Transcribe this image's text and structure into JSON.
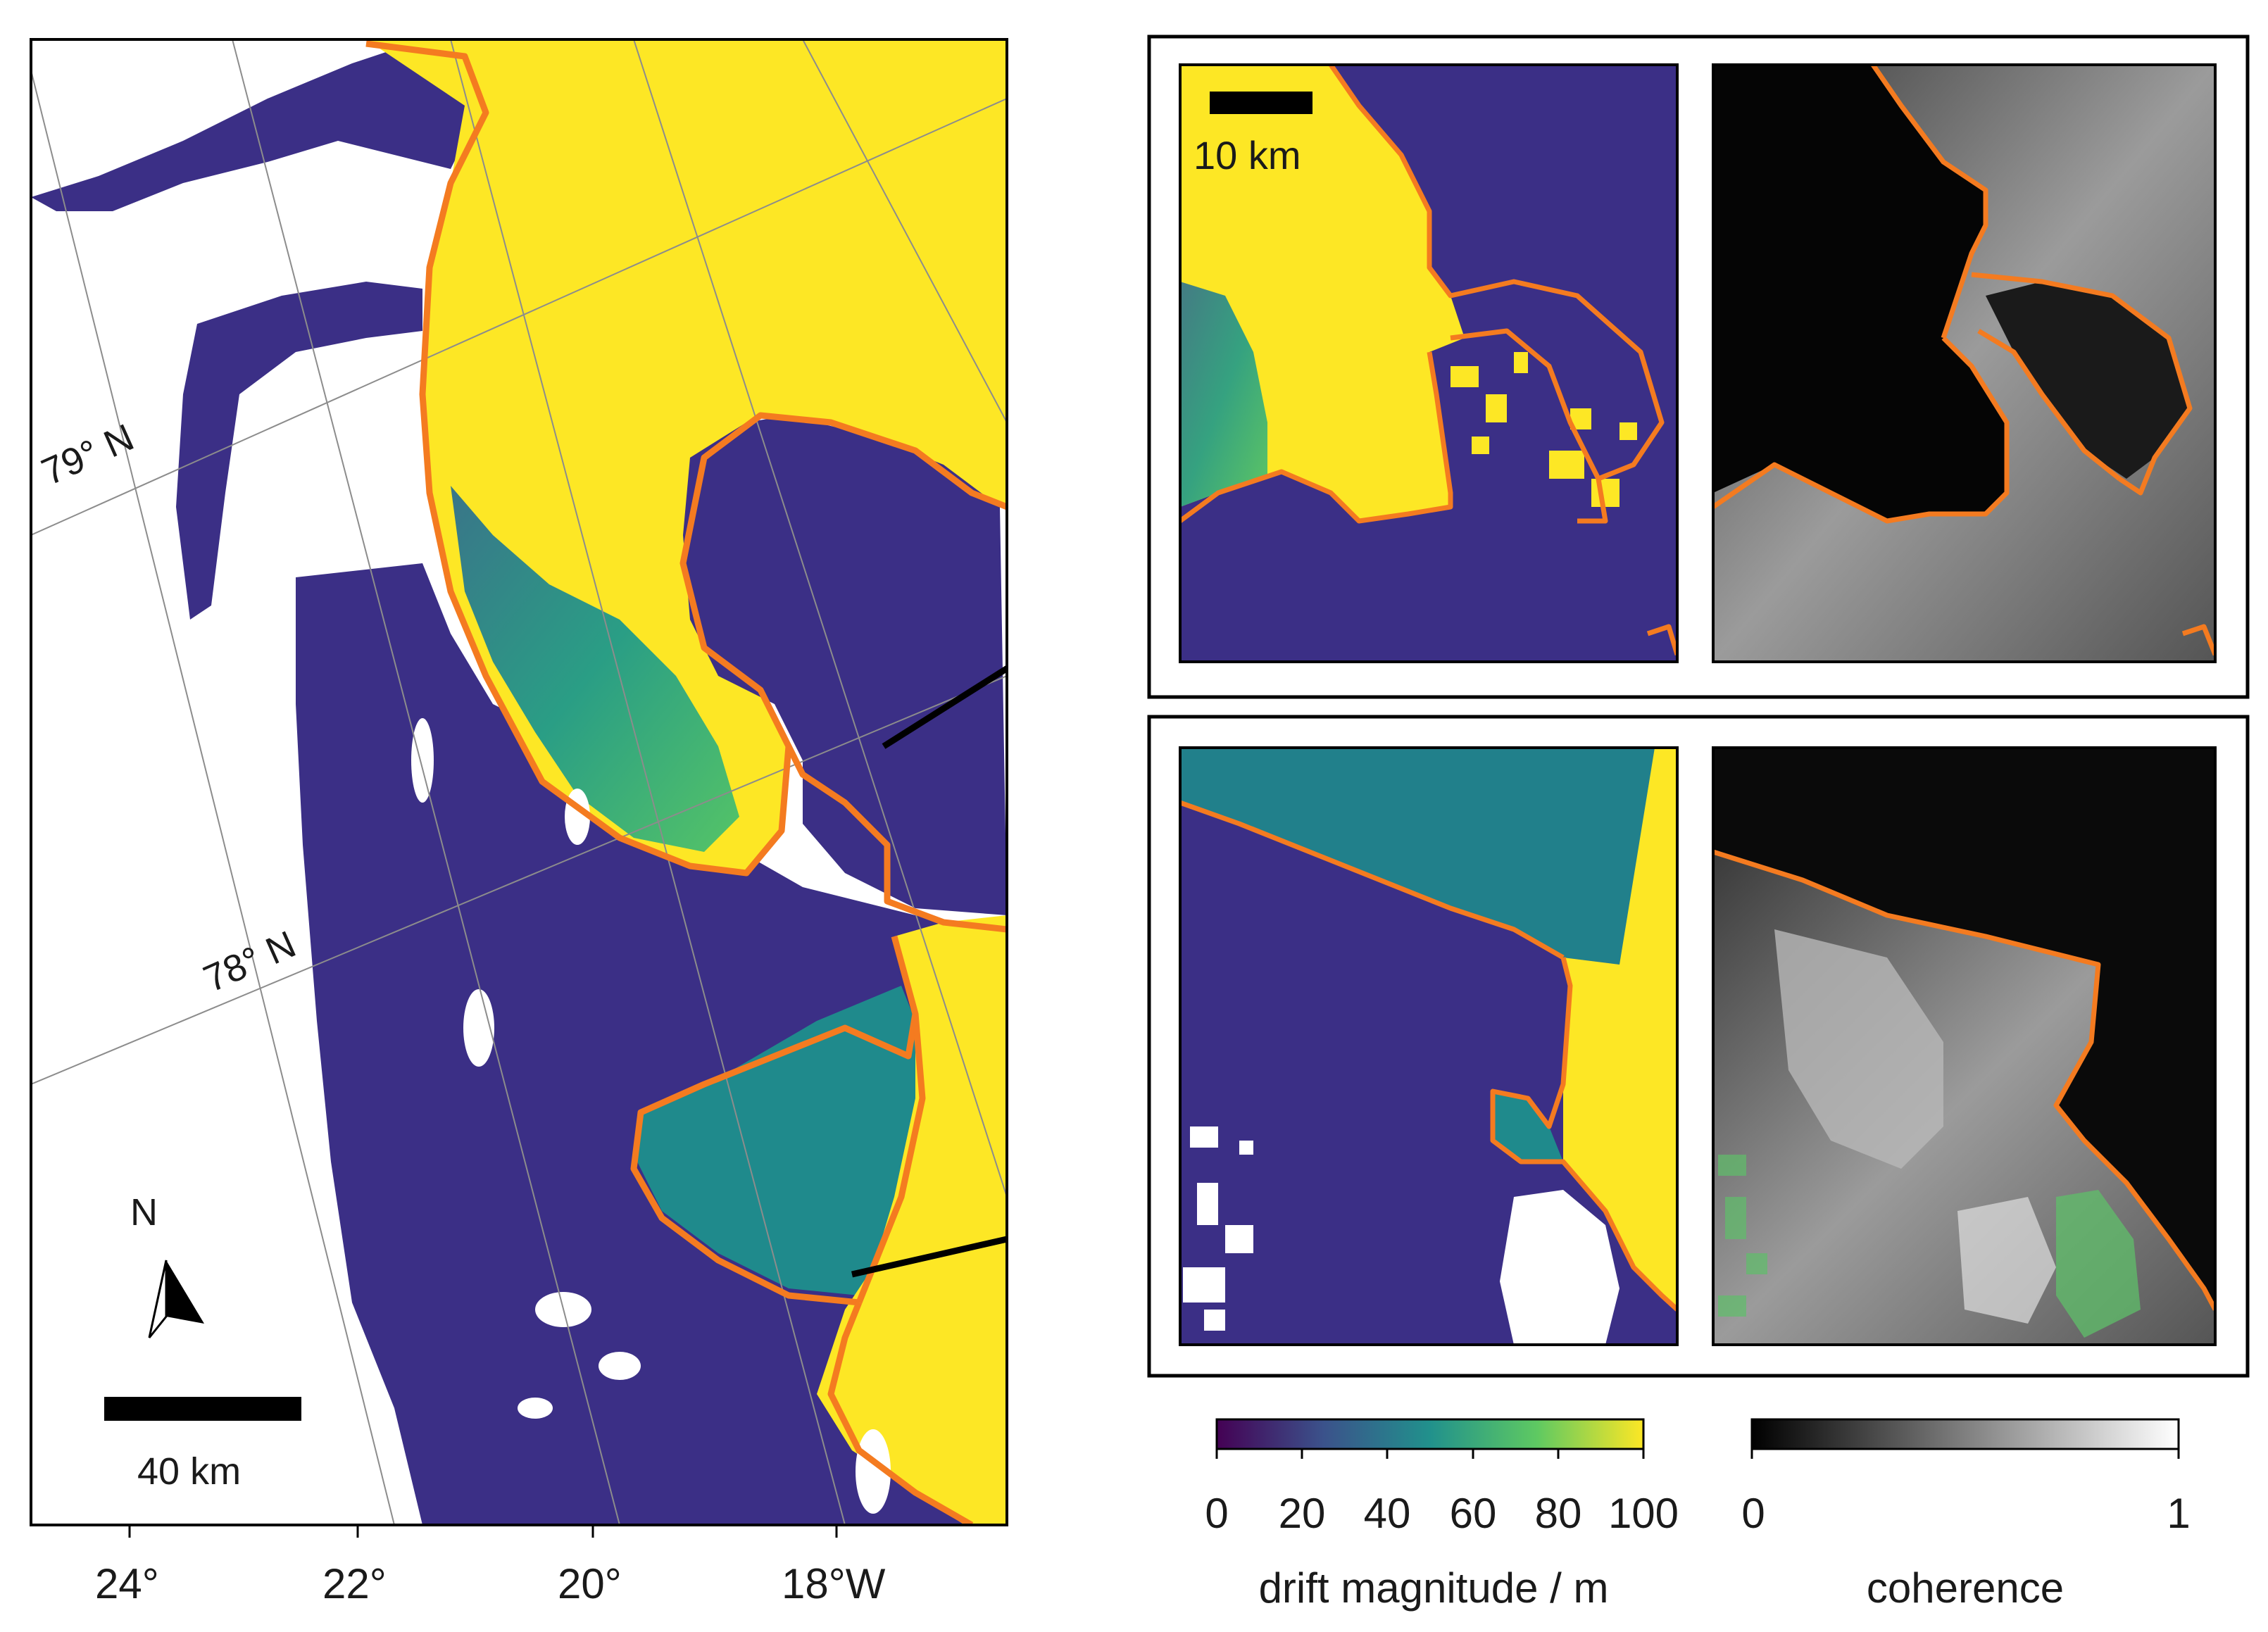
{
  "map": {
    "latitude_labels": [
      "79° N",
      "78° N"
    ],
    "longitude_ticks": [
      "24°",
      "22°",
      "20°",
      "18°W"
    ],
    "north_arrow_label": "N",
    "scale_bar_main": "40 km",
    "scale_bar_inset": "10 km"
  },
  "colorbars": {
    "drift": {
      "title": "drift magnitude / m",
      "ticks": [
        "0",
        "20",
        "40",
        "60",
        "80",
        "100"
      ],
      "colormap": [
        "#440154",
        "#3b528b",
        "#21918c",
        "#5ec962",
        "#fde725"
      ]
    },
    "coherence": {
      "title": "coherence",
      "ticks": [
        "0",
        "1"
      ],
      "colormap": [
        "#000000",
        "#ffffff"
      ]
    }
  },
  "colors": {
    "boundary": "#f47b20",
    "ice_low": "#3b2f86",
    "ice_mid": "#21918c",
    "ice_high": "#fde725"
  }
}
